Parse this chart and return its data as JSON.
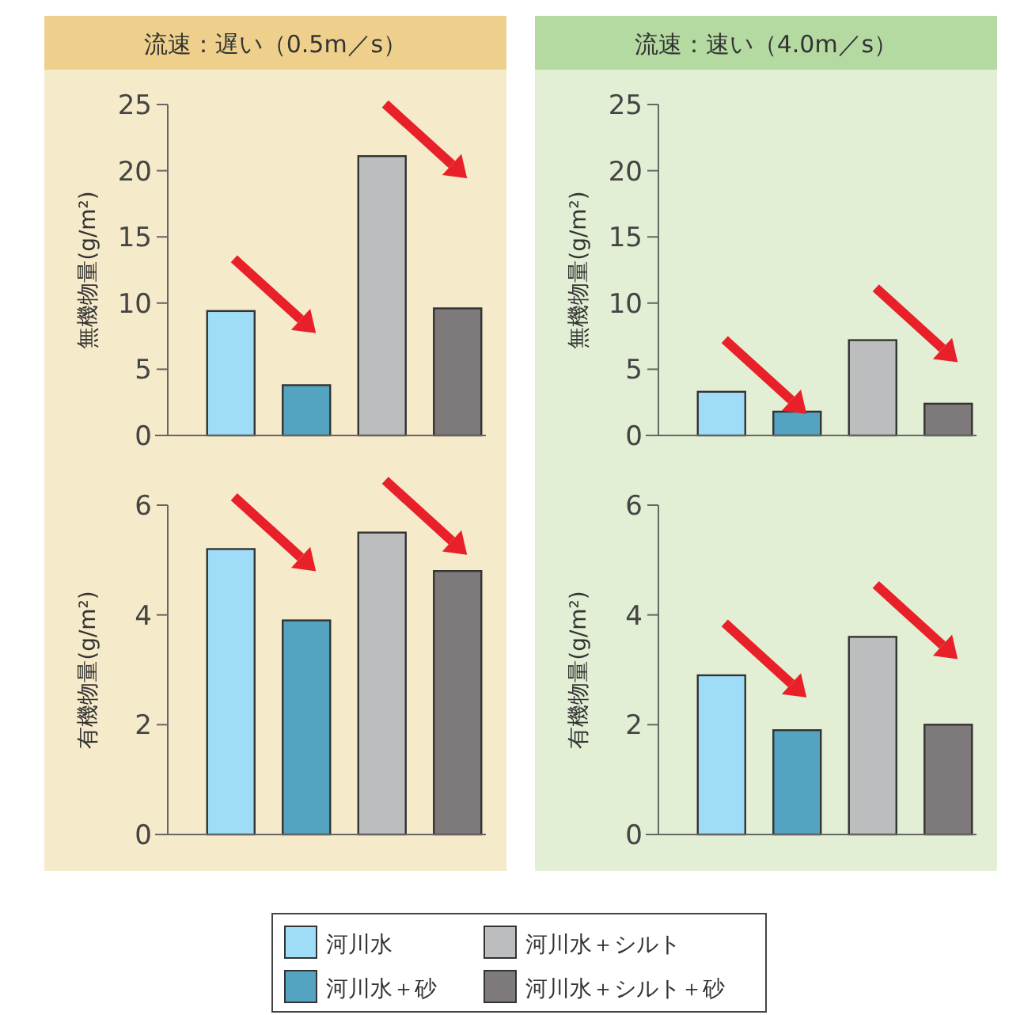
{
  "chart_data": [
    {
      "type": "bar",
      "title": "流速：遅い（0.5m／s）",
      "ylabel": "無機物量(g/m²)",
      "categories": [
        null,
        null,
        null,
        null
      ],
      "ylim": [
        0,
        25
      ],
      "yticks": [
        0,
        5,
        10,
        15,
        20,
        25
      ],
      "legend": "bottom",
      "grid": false,
      "series": [
        {
          "name": "河川水",
          "color": "#9edcf8",
          "values": [
            9.4,
            null,
            null,
            null
          ]
        },
        {
          "name": "河川水＋砂",
          "color": "#54a3c1",
          "values": [
            null,
            3.8,
            null,
            null
          ]
        },
        {
          "name": "河川水＋シルト",
          "color": "#bcbdbf",
          "values": [
            null,
            null,
            21.1,
            null
          ]
        },
        {
          "name": "河川水＋シルト＋砂",
          "color": "#7e7a7b",
          "values": [
            null,
            null,
            null,
            9.6
          ]
        }
      ]
    },
    {
      "type": "bar",
      "title": "流速：速い（4.0m／s）",
      "ylabel": "無機物量(g/m²)",
      "categories": [
        null,
        null,
        null,
        null
      ],
      "ylim": [
        0,
        25
      ],
      "yticks": [
        0,
        5,
        10,
        15,
        20,
        25
      ],
      "grid": false,
      "series": [
        {
          "color": "#9edcf8",
          "values": [
            3.3,
            null,
            null,
            null
          ]
        },
        {
          "color": "#54a3c1",
          "values": [
            null,
            1.8,
            null,
            null
          ]
        },
        {
          "color": "#bcbdbf",
          "values": [
            null,
            null,
            7.2,
            null
          ]
        },
        {
          "color": "#7e7a7b",
          "values": [
            null,
            null,
            null,
            2.4
          ]
        }
      ]
    },
    {
      "type": "bar",
      "ylabel": "有機物量(g/m²)",
      "categories": [
        null,
        null,
        null,
        null
      ],
      "ylim": [
        0,
        6
      ],
      "yticks": [
        0,
        2,
        4,
        6
      ],
      "grid": false,
      "series": [
        {
          "color": "#9edcf8",
          "values": [
            5.2,
            null,
            null,
            null
          ]
        },
        {
          "color": "#54a3c1",
          "values": [
            null,
            3.9,
            null,
            null
          ]
        },
        {
          "color": "#bcbdbf",
          "values": [
            null,
            null,
            5.5,
            null
          ]
        },
        {
          "color": "#7e7a7b",
          "values": [
            null,
            null,
            null,
            4.8
          ]
        }
      ]
    },
    {
      "type": "bar",
      "ylabel": "有機物量(g/m²)",
      "categories": [
        null,
        null,
        null,
        null
      ],
      "ylim": [
        0,
        6
      ],
      "yticks": [
        0,
        2,
        4,
        6
      ],
      "grid": false,
      "series": [
        {
          "color": "#9edcf8",
          "values": [
            2.9,
            null,
            null,
            null
          ]
        },
        {
          "color": "#54a3c1",
          "values": [
            null,
            1.9,
            null,
            null
          ]
        },
        {
          "color": "#bcbdbf",
          "values": [
            null,
            null,
            3.6,
            null
          ]
        },
        {
          "color": "#7e7a7b",
          "values": [
            null,
            null,
            null,
            2.0
          ]
        }
      ]
    }
  ]
}
